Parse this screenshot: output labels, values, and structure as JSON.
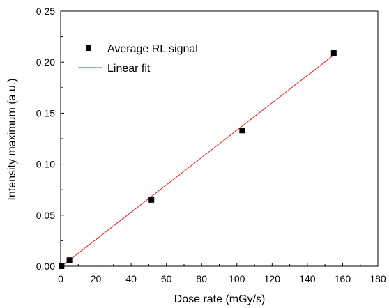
{
  "chart_data": {
    "type": "scatter",
    "xlabel": "Dose rate (mGy/s)",
    "ylabel": "Intensity maximum (a.u.)",
    "xlim": [
      0,
      180
    ],
    "ylim": [
      0,
      0.25
    ],
    "x_ticks": [
      "0",
      "20",
      "40",
      "60",
      "80",
      "100",
      "120",
      "140",
      "160",
      "180"
    ],
    "y_ticks": [
      "0.00",
      "0.05",
      "0.10",
      "0.15",
      "0.20",
      "0.25"
    ],
    "grid": false,
    "legend_position": "top-left",
    "series": [
      {
        "name": "Average RL signal",
        "kind": "scatter",
        "marker": "square",
        "color": "#000000",
        "points": [
          {
            "x": 0.5,
            "y": 0.0
          },
          {
            "x": 5,
            "y": 0.006
          },
          {
            "x": 51.5,
            "y": 0.065
          },
          {
            "x": 103,
            "y": 0.133
          },
          {
            "x": 155,
            "y": 0.209
          }
        ]
      },
      {
        "name": "Linear fit",
        "kind": "line",
        "color": "#e0201c",
        "points": [
          {
            "x": 0.5,
            "y": 0.0
          },
          {
            "x": 155,
            "y": 0.207
          }
        ]
      }
    ]
  }
}
